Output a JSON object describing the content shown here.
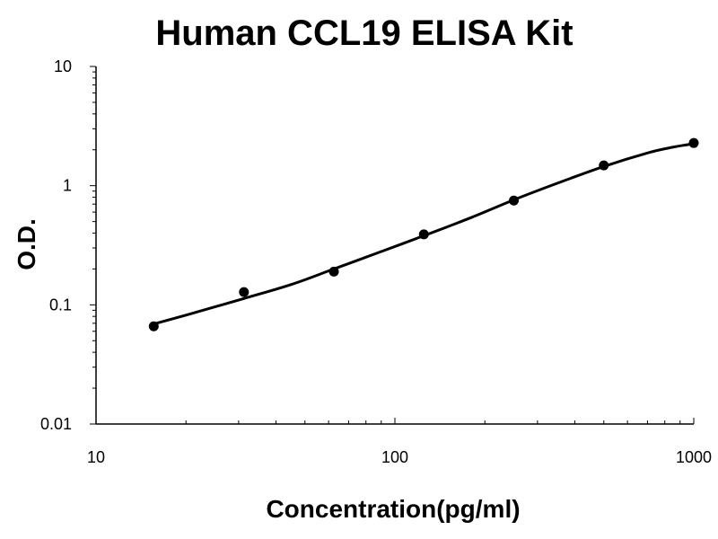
{
  "chart_data": {
    "type": "scatter",
    "title": "Human CCL19 ELISA Kit",
    "xlabel": "Concentration(pg/ml)",
    "ylabel": "O.D.",
    "x_scale": "log",
    "y_scale": "log",
    "xlim": [
      10,
      1000
    ],
    "ylim": [
      0.01,
      10
    ],
    "x_ticks": [
      {
        "value": 10,
        "label": "10"
      },
      {
        "value": 100,
        "label": "100"
      },
      {
        "value": 1000,
        "label": "1000"
      }
    ],
    "y_ticks": [
      {
        "value": 0.01,
        "label": "0.01"
      },
      {
        "value": 0.1,
        "label": "0.1"
      },
      {
        "value": 1,
        "label": "1"
      },
      {
        "value": 10,
        "label": "10"
      }
    ],
    "grid": false,
    "legend": false,
    "series": [
      {
        "style": "points",
        "color": "#000000",
        "points": [
          {
            "x": 15.6,
            "y": 0.066
          },
          {
            "x": 31.25,
            "y": 0.128
          },
          {
            "x": 62.5,
            "y": 0.19
          },
          {
            "x": 125,
            "y": 0.39
          },
          {
            "x": 250,
            "y": 0.75
          },
          {
            "x": 500,
            "y": 1.48
          },
          {
            "x": 1000,
            "y": 2.28
          }
        ]
      },
      {
        "style": "fitted-curve",
        "color": "#000000",
        "points": [
          {
            "x": 15.6,
            "y": 0.069
          },
          {
            "x": 20,
            "y": 0.082
          },
          {
            "x": 31.25,
            "y": 0.113
          },
          {
            "x": 45,
            "y": 0.148
          },
          {
            "x": 62.5,
            "y": 0.2
          },
          {
            "x": 90,
            "y": 0.28
          },
          {
            "x": 125,
            "y": 0.38
          },
          {
            "x": 180,
            "y": 0.54
          },
          {
            "x": 250,
            "y": 0.76
          },
          {
            "x": 350,
            "y": 1.05
          },
          {
            "x": 500,
            "y": 1.45
          },
          {
            "x": 700,
            "y": 1.88
          },
          {
            "x": 850,
            "y": 2.1
          },
          {
            "x": 1000,
            "y": 2.25
          }
        ]
      }
    ]
  }
}
